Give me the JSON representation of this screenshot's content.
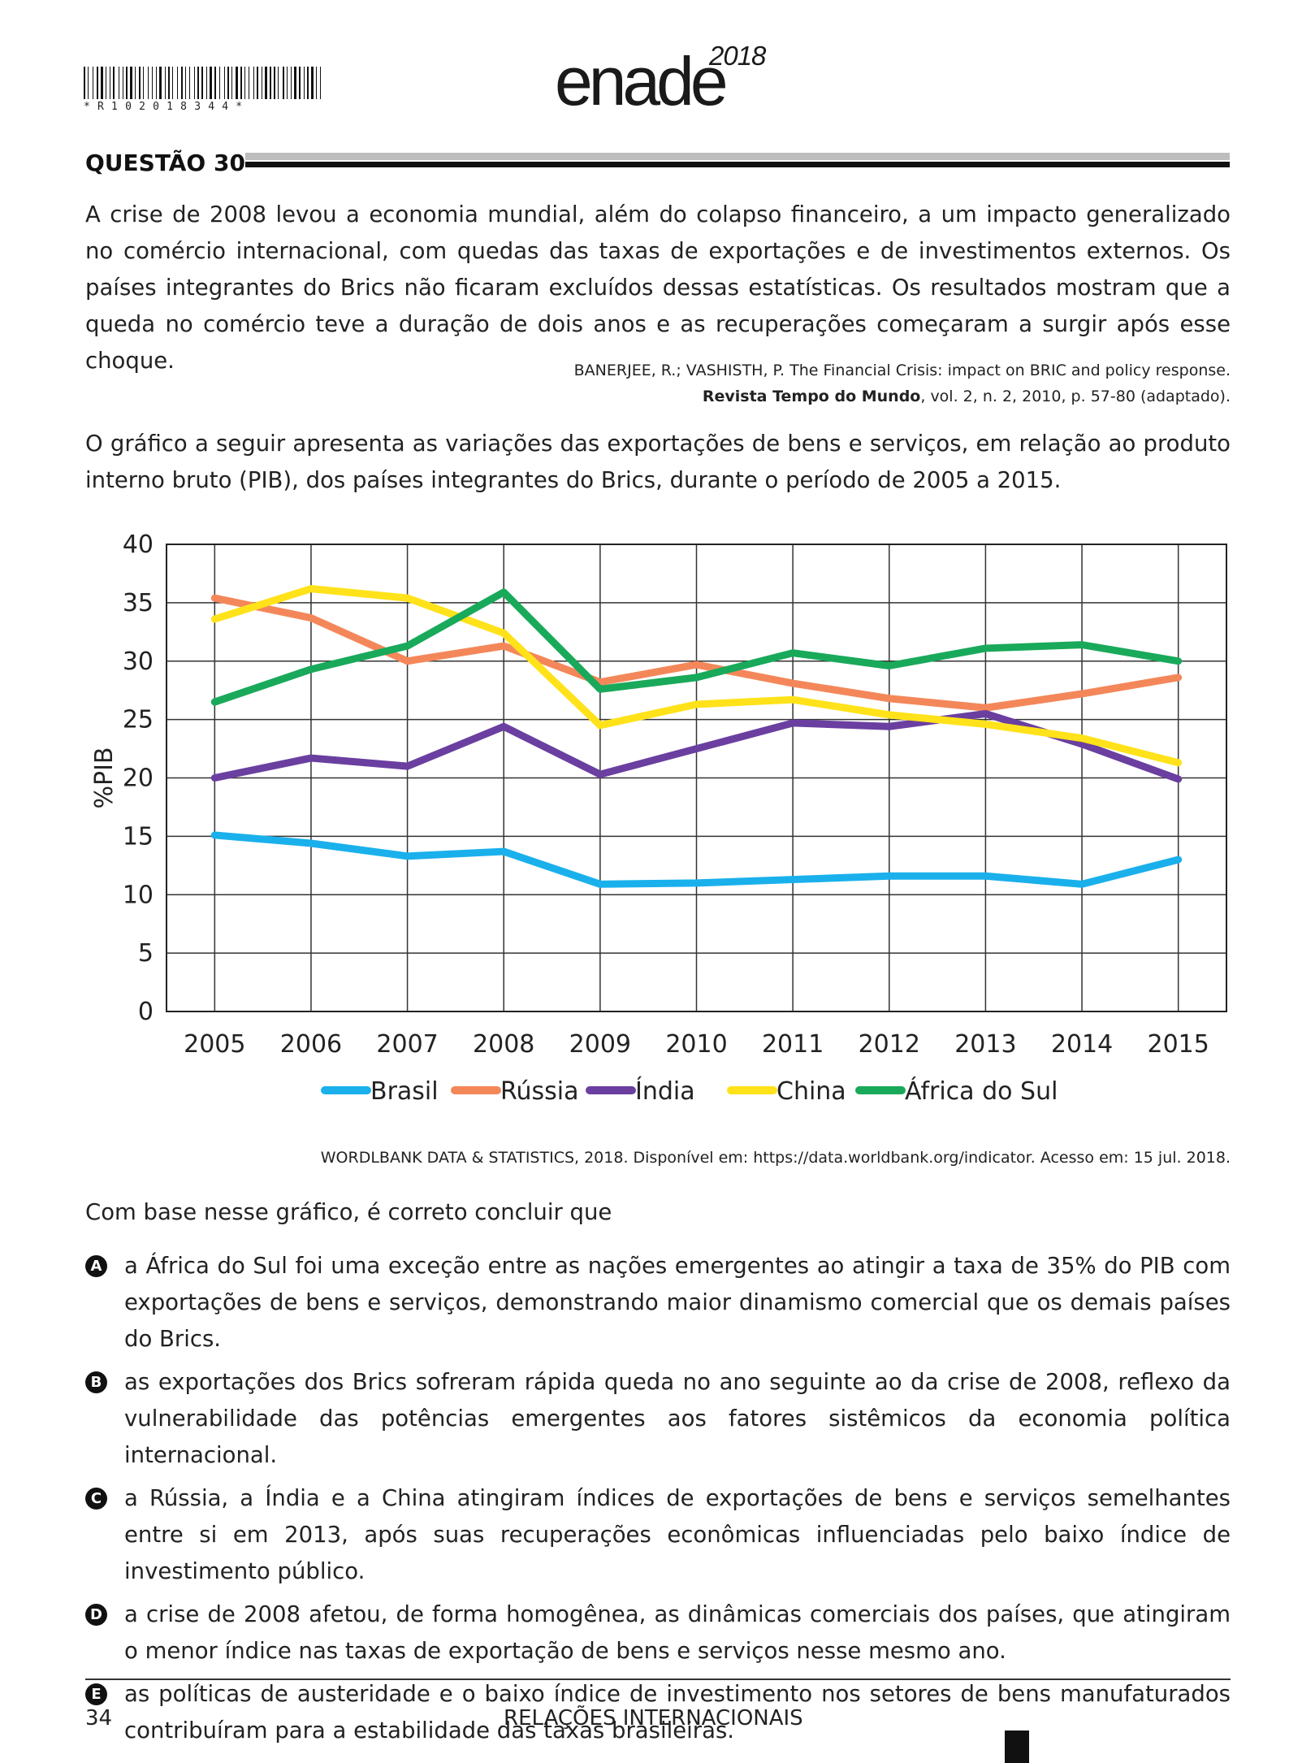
{
  "header": {
    "barcode_text": "*R102018344*",
    "logo_word": "enade",
    "logo_year": "2018"
  },
  "question_title": "QUESTÃO 30",
  "intro_text": "A crise de 2008 levou a economia mundial, além do colapso financeiro, a um impacto generalizado no comércio internacional, com quedas das taxas de exportações e de investimentos externos. Os países integrantes do Brics não ficaram excluídos dessas estatísticas. Os resultados mostram que a queda no comércio teve a duração de dois anos e as recuperações começaram a surgir após esse choque.",
  "reference": {
    "line1": "BANERJEE, R.; VASHISTH, P. The Financial Crisis: impact on BRIC and policy response.",
    "journal": "Revista Tempo do Mundo",
    "line2_rest": ", vol. 2, n. 2, 2010, p. 57-80 (adaptado)."
  },
  "chart_intro": "O gráfico a seguir apresenta as variações das exportações de bens e serviços, em relação ao produto interno bruto (PIB), dos países integrantes do Brics, durante o período de 2005 a 2015.",
  "chart_data": {
    "type": "line",
    "title": "",
    "xlabel": "",
    "ylabel": "%PIB",
    "x": [
      "2005",
      "2006",
      "2007",
      "2008",
      "2009",
      "2010",
      "2011",
      "2012",
      "2013",
      "2014",
      "2015"
    ],
    "ylim": [
      0,
      40
    ],
    "yticks": [
      0,
      5,
      10,
      15,
      20,
      25,
      30,
      35,
      40
    ],
    "grid": true,
    "legend_position": "bottom",
    "series": [
      {
        "name": "Brasil",
        "color": "#1ab0ec",
        "values": [
          15.1,
          14.4,
          13.3,
          13.7,
          10.9,
          11.0,
          11.3,
          11.6,
          11.6,
          10.9,
          13.0
        ]
      },
      {
        "name": "Rússia",
        "color": "#f4875a",
        "values": [
          35.4,
          33.7,
          30.0,
          31.3,
          28.2,
          29.7,
          28.1,
          26.8,
          26.0,
          27.2,
          28.6
        ]
      },
      {
        "name": "Índia",
        "color": "#6a3fa0",
        "values": [
          20.0,
          21.7,
          21.0,
          24.4,
          20.3,
          22.5,
          24.7,
          24.4,
          25.5,
          22.9,
          19.9
        ]
      },
      {
        "name": "China",
        "color": "#ffe21a",
        "values": [
          33.6,
          36.2,
          35.4,
          32.4,
          24.5,
          26.3,
          26.7,
          25.4,
          24.6,
          23.4,
          21.3
        ]
      },
      {
        "name": "África do Sul",
        "color": "#19a95a",
        "values": [
          26.5,
          29.3,
          31.3,
          35.9,
          27.6,
          28.6,
          30.7,
          29.6,
          31.1,
          31.4,
          30.0
        ]
      }
    ]
  },
  "chart_source": "WORDLBANK DATA & STATISTICS, 2018. Disponível em: https://data.worldbank.org/indicator. Acesso em: 15 jul. 2018.",
  "lead_text": "Com base nesse gráfico, é correto concluir que",
  "options": [
    {
      "letter": "A",
      "text": "a África do Sul foi uma exceção entre as nações emergentes ao atingir a taxa de 35% do PIB com exportações de bens e serviços, demonstrando maior dinamismo comercial que os demais países do Brics."
    },
    {
      "letter": "B",
      "text": "as exportações dos Brics sofreram rápida queda no ano seguinte ao da crise de 2008, reflexo da vulnerabilidade das potências emergentes aos fatores sistêmicos da economia política internacional."
    },
    {
      "letter": "C",
      "text": "a Rússia, a Índia e a China atingiram índices de exportações de bens e serviços semelhantes entre si em 2013, após suas recuperações econômicas influenciadas pelo baixo índice de investimento público."
    },
    {
      "letter": "D",
      "text": "a crise de 2008 afetou, de forma homogênea, as dinâmicas comerciais dos países, que atingiram o menor índice nas taxas de exportação de bens e serviços nesse mesmo ano."
    },
    {
      "letter": "E",
      "text": "as políticas de austeridade e o baixo índice de investimento nos setores de bens manufaturados contribuíram para a estabilidade das taxas brasileiras."
    }
  ],
  "footer": {
    "page_number": "34",
    "title": "RELAÇÕES INTERNACIONAIS"
  }
}
